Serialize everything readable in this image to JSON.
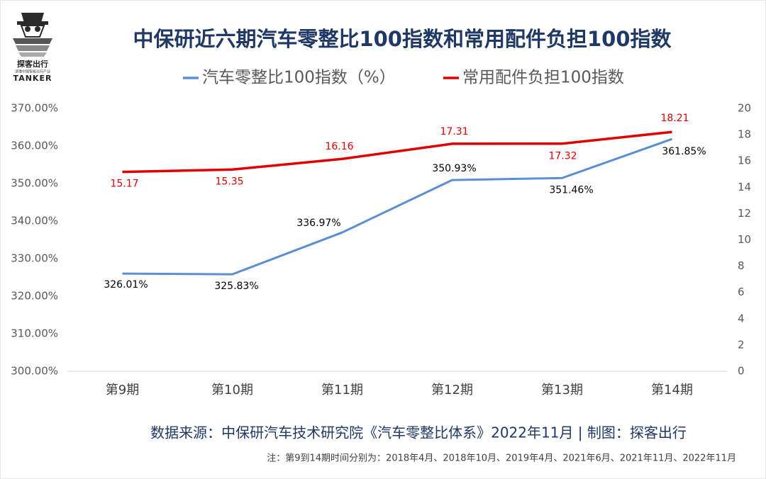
{
  "chart_data": {
    "type": "line",
    "title": "中保研近六期汽车零整比100指数和常用配件负担100指数",
    "logo_name": "探客出行",
    "logo_tagline": "读懂中国智能出行产业",
    "logo_brand": "TANKER",
    "categories": [
      "第9期",
      "第10期",
      "第11期",
      "第12期",
      "第13期",
      "第14期"
    ],
    "series": [
      {
        "name": "汽车零整比100指数（%）",
        "color": "#5b8fd2",
        "values": [
          326.01,
          325.83,
          336.97,
          350.93,
          351.46,
          361.85
        ],
        "value_labels": [
          "326.01%",
          "325.83%",
          "336.97%",
          "350.93%",
          "351.46%",
          "361.85%"
        ],
        "label_color": "#000000"
      },
      {
        "name": "常用配件负担100指数",
        "color": "#e00000",
        "axis": "y2",
        "values": [
          15.17,
          15.35,
          16.16,
          17.31,
          17.32,
          18.21
        ],
        "label_color": "#e00000"
      }
    ],
    "ylim": [
      300,
      370
    ],
    "yticks": [
      {
        "value": 300,
        "label": "300.00%"
      },
      {
        "value": 310,
        "label": "310.00%"
      },
      {
        "value": 320,
        "label": "320.00%"
      },
      {
        "value": 330,
        "label": "330.00%"
      },
      {
        "value": 340,
        "label": "340.00%"
      },
      {
        "value": 350,
        "label": "350.00%"
      },
      {
        "value": 360,
        "label": "360.00%"
      },
      {
        "value": 370,
        "label": "370.00%"
      }
    ],
    "y2lim": [
      0,
      20
    ],
    "y2ticks": [
      0,
      2,
      4,
      6,
      8,
      10,
      12,
      14,
      16,
      18,
      20
    ],
    "grid": false,
    "source": "数据来源：中保研汽车技术研究院《汽车零整比体系》2022年11月  |  制图：探客出行",
    "note": "注：第9到14期时间分别为：2018年4月、2018年10月、2019年4月、2021年6月、2021年11月、2022年11月"
  }
}
